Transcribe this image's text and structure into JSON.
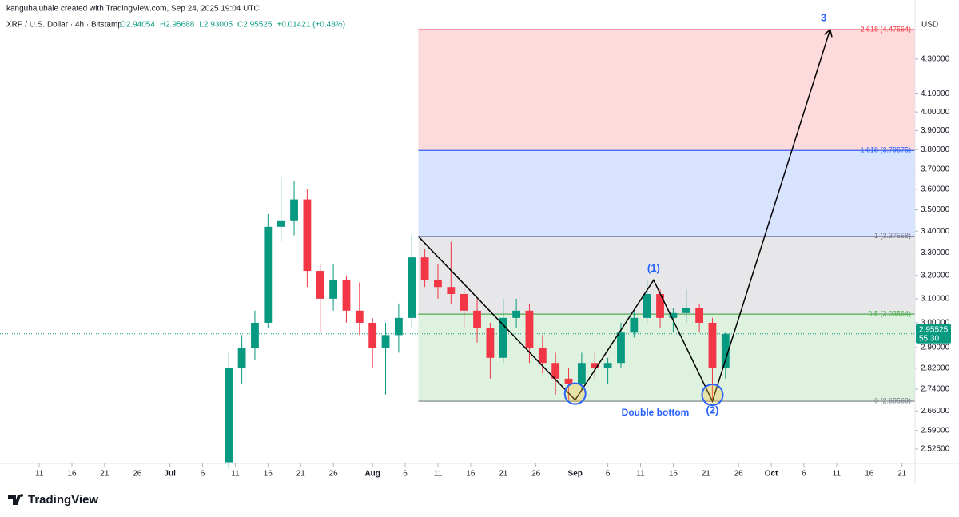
{
  "chart_data": {
    "type": "candlestick",
    "credit": "kanguhalubale created with TradingView.com, Sep 24, 2025 19:04 UTC",
    "symbol": "XRP / U.S. Dollar · 4h · Bitstamp",
    "ohlc": [
      "O2.94054",
      "H2.95688",
      "L2.93005",
      "C2.95525"
    ],
    "change": "+0.01421 (+0.48%)",
    "currency": "USD",
    "last_price": 2.95525,
    "countdown": "55:30",
    "brand": "TradingView",
    "log_scale": true,
    "up_color": "#089981",
    "down_color": "#f23645",
    "x": [
      "2025-07-10",
      "2025-07-12",
      "2025-07-14",
      "2025-07-16",
      "2025-07-18",
      "2025-07-20",
      "2025-07-22",
      "2025-07-24",
      "2025-07-26",
      "2025-07-28",
      "2025-07-30",
      "2025-08-01",
      "2025-08-03",
      "2025-08-05",
      "2025-08-07",
      "2025-08-09",
      "2025-08-11",
      "2025-08-13",
      "2025-08-15",
      "2025-08-17",
      "2025-08-19",
      "2025-08-21",
      "2025-08-23",
      "2025-08-25",
      "2025-08-27",
      "2025-08-29",
      "2025-08-31",
      "2025-09-02",
      "2025-09-04",
      "2025-09-06",
      "2025-09-08",
      "2025-09-10",
      "2025-09-12",
      "2025-09-14",
      "2025-09-16",
      "2025-09-18",
      "2025-09-20",
      "2025-09-22",
      "2025-09-24"
    ],
    "open": [
      2.48,
      2.82,
      2.9,
      3.0,
      3.42,
      3.45,
      3.55,
      3.22,
      3.1,
      3.18,
      3.05,
      3.0,
      2.9,
      2.95,
      3.02,
      3.28,
      3.18,
      3.15,
      3.12,
      3.05,
      2.98,
      2.86,
      3.02,
      3.05,
      2.9,
      2.84,
      2.78,
      2.76,
      2.84,
      2.82,
      2.84,
      2.96,
      3.02,
      3.12,
      3.02,
      3.04,
      3.06,
      3.0,
      2.82
    ],
    "high": [
      2.88,
      2.95,
      3.05,
      3.48,
      3.66,
      3.64,
      3.6,
      3.25,
      3.25,
      3.2,
      3.17,
      3.02,
      3.0,
      3.08,
      3.38,
      3.32,
      3.25,
      3.35,
      3.15,
      3.1,
      3.0,
      3.1,
      3.1,
      3.08,
      2.95,
      2.88,
      2.82,
      2.88,
      2.88,
      2.86,
      3.0,
      3.05,
      3.18,
      3.14,
      3.06,
      3.14,
      3.08,
      3.02,
      2.96
    ],
    "low": [
      2.46,
      2.76,
      2.85,
      2.98,
      3.35,
      3.38,
      3.15,
      2.96,
      3.05,
      3.0,
      2.95,
      2.82,
      2.72,
      2.88,
      2.98,
      3.15,
      3.1,
      3.08,
      2.98,
      2.92,
      2.78,
      2.84,
      2.98,
      2.84,
      2.8,
      2.72,
      2.7,
      2.74,
      2.78,
      2.76,
      2.82,
      2.94,
      3.0,
      2.98,
      2.96,
      3.0,
      2.96,
      2.7,
      2.78
    ],
    "close": [
      2.82,
      2.9,
      3.0,
      3.42,
      3.45,
      3.55,
      3.22,
      3.1,
      3.18,
      3.05,
      3.0,
      2.9,
      2.95,
      3.02,
      3.28,
      3.18,
      3.15,
      3.12,
      3.05,
      2.98,
      2.86,
      3.02,
      3.05,
      2.9,
      2.84,
      2.78,
      2.76,
      2.84,
      2.82,
      2.84,
      2.96,
      3.02,
      3.12,
      3.02,
      3.04,
      3.06,
      3.0,
      2.82,
      2.955
    ],
    "xlim": [
      "2025-06-05",
      "2025-10-23"
    ],
    "xticks": [
      {
        "value": "2025-06-11",
        "label": "11"
      },
      {
        "value": "2025-06-16",
        "label": "16"
      },
      {
        "value": "2025-06-21",
        "label": "21"
      },
      {
        "value": "2025-06-26",
        "label": "26"
      },
      {
        "value": "2025-07-01",
        "label": "Jul"
      },
      {
        "value": "2025-07-06",
        "label": "6"
      },
      {
        "value": "2025-07-11",
        "label": "11"
      },
      {
        "value": "2025-07-16",
        "label": "16"
      },
      {
        "value": "2025-07-21",
        "label": "21"
      },
      {
        "value": "2025-07-26",
        "label": "26"
      },
      {
        "value": "2025-08-01",
        "label": "Aug"
      },
      {
        "value": "2025-08-06",
        "label": "6"
      },
      {
        "value": "2025-08-11",
        "label": "11"
      },
      {
        "value": "2025-08-16",
        "label": "16"
      },
      {
        "value": "2025-08-21",
        "label": "21"
      },
      {
        "value": "2025-08-26",
        "label": "26"
      },
      {
        "value": "2025-09-01",
        "label": "Sep"
      },
      {
        "value": "2025-09-06",
        "label": "6"
      },
      {
        "value": "2025-09-11",
        "label": "11"
      },
      {
        "value": "2025-09-16",
        "label": "16"
      },
      {
        "value": "2025-09-21",
        "label": "21"
      },
      {
        "value": "2025-09-26",
        "label": "26"
      },
      {
        "value": "2025-10-01",
        "label": "Oct"
      },
      {
        "value": "2025-10-06",
        "label": "6"
      },
      {
        "value": "2025-10-11",
        "label": "11"
      },
      {
        "value": "2025-10-16",
        "label": "16"
      },
      {
        "value": "2025-10-21",
        "label": "21"
      }
    ],
    "ylim": [
      2.476,
      4.61
    ],
    "yticks": [
      {
        "value": 2.525,
        "label": "2.52500"
      },
      {
        "value": 2.59,
        "label": "2.59000"
      },
      {
        "value": 2.66,
        "label": "2.66000"
      },
      {
        "value": 2.74,
        "label": "2.74000"
      },
      {
        "value": 2.82,
        "label": "2.82000"
      },
      {
        "value": 2.9,
        "label": "2.90000"
      },
      {
        "value": 3.0,
        "label": "3.00000"
      },
      {
        "value": 3.1,
        "label": "3.10000"
      },
      {
        "value": 3.2,
        "label": "3.20000"
      },
      {
        "value": 3.3,
        "label": "3.30000"
      },
      {
        "value": 3.4,
        "label": "3.40000"
      },
      {
        "value": 3.5,
        "label": "3.50000"
      },
      {
        "value": 3.6,
        "label": "3.60000"
      },
      {
        "value": 3.7,
        "label": "3.70000"
      },
      {
        "value": 3.8,
        "label": "3.80000"
      },
      {
        "value": 3.9,
        "label": "3.90000"
      },
      {
        "value": 4.0,
        "label": "4.00000"
      },
      {
        "value": 4.1,
        "label": "4.10000"
      },
      {
        "value": 4.3,
        "label": "4.30000"
      }
    ],
    "fib_start": "2025-08-08",
    "fib_levels": [
      {
        "label": "0 (2.69569)",
        "value": 2.69569,
        "color": "#787b86"
      },
      {
        "label": "0.5 (3.03564)",
        "value": 3.03564,
        "color": "#4caf50"
      },
      {
        "label": "1 (3.37558)",
        "value": 3.37558,
        "color": "#787b86"
      },
      {
        "label": "1.618 (3.79575)",
        "value": 3.79575,
        "color": "#2962ff"
      },
      {
        "label": "2.618 (4.47564)",
        "value": 4.47564,
        "color": "#f23645"
      }
    ],
    "pattern": {
      "x": [
        "2025-08-08",
        "2025-09-01",
        "2025-09-13",
        "2025-09-22",
        "2025-10-10"
      ],
      "values": [
        3.37558,
        2.7,
        3.18,
        2.69569,
        4.47564
      ],
      "labels": [
        null,
        null,
        "(1)",
        "(2)",
        "3"
      ]
    },
    "pattern_name": "Double bottom"
  }
}
